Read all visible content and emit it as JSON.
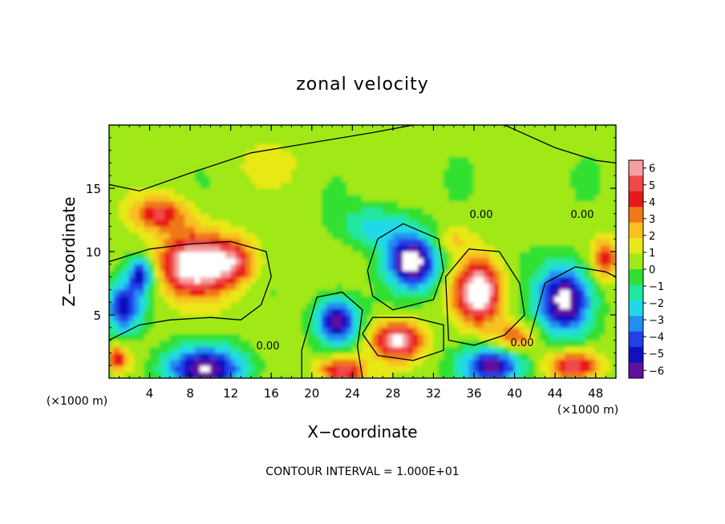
{
  "chart_data": {
    "type": "heatmap",
    "title": "zonal velocity",
    "xlabel": "X−coordinate",
    "ylabel": "Z−coordinate",
    "x_unit_left": "(×1000 m)",
    "x_unit_right": "(×1000 m)",
    "xlim": [
      0,
      50
    ],
    "ylim": [
      0,
      20
    ],
    "x_ticks": [
      4,
      8,
      12,
      16,
      20,
      24,
      28,
      32,
      36,
      40,
      44,
      48
    ],
    "x_tick_labels": [
      "4",
      "8",
      "12",
      "16",
      "20",
      "24",
      "28",
      "32",
      "36",
      "40",
      "44",
      "48"
    ],
    "y_ticks": [
      5,
      10,
      15
    ],
    "y_tick_labels": [
      "5",
      "10",
      "15"
    ],
    "colorbar": {
      "min": -6,
      "max": 6,
      "labels": [
        "6",
        "5",
        "4",
        "3",
        "2",
        "1",
        "0",
        "−1",
        "−2",
        "−3",
        "−4",
        "−5",
        "−6"
      ],
      "colors": [
        "#f5a0a0",
        "#f04848",
        "#e81818",
        "#f07818",
        "#f8c020",
        "#e8e818",
        "#a0e818",
        "#30e030",
        "#20e8a0",
        "#20d8e8",
        "#2090f0",
        "#2040e8",
        "#1010c0",
        "#6010a0"
      ]
    },
    "contour_labels": [
      "0.00",
      "0.00",
      "0.00",
      "0.00"
    ],
    "footer": "CONTOUR INTERVAL = 1.000E+01",
    "blobs": [
      {
        "x": 8.5,
        "z": 9.0,
        "sx": 3.5,
        "sz": 2.4,
        "v": 7
      },
      {
        "x": 5.0,
        "z": 13.0,
        "sx": 2.8,
        "sz": 1.3,
        "v": 4
      },
      {
        "x": 12.5,
        "z": 9.2,
        "sx": 2.2,
        "sz": 1.7,
        "v": 3.5
      },
      {
        "x": 30.0,
        "z": 9.2,
        "sx": 2.4,
        "sz": 2.0,
        "v": -7
      },
      {
        "x": 36.5,
        "z": 6.8,
        "sx": 2.2,
        "sz": 2.4,
        "v": 7
      },
      {
        "x": 45.0,
        "z": 6.2,
        "sx": 2.6,
        "sz": 2.6,
        "v": -7
      },
      {
        "x": 22.5,
        "z": 4.6,
        "sx": 2.0,
        "sz": 1.8,
        "v": -6
      },
      {
        "x": 28.5,
        "z": 3.0,
        "sx": 2.4,
        "sz": 1.4,
        "v": 6
      },
      {
        "x": 38.0,
        "z": 1.0,
        "sx": 3.0,
        "sz": 1.4,
        "v": -6
      },
      {
        "x": 9.5,
        "z": 0.8,
        "sx": 4.0,
        "sz": 1.7,
        "v": -6
      },
      {
        "x": 23.0,
        "z": 0.6,
        "sx": 2.3,
        "sz": 1.1,
        "v": 5
      },
      {
        "x": 46.0,
        "z": 1.0,
        "sx": 2.6,
        "sz": 1.2,
        "v": 5
      },
      {
        "x": 1.5,
        "z": 5.6,
        "sx": 1.8,
        "sz": 2.0,
        "v": -5
      },
      {
        "x": 3.2,
        "z": 8.2,
        "sx": 1.2,
        "sz": 1.3,
        "v": -5
      },
      {
        "x": 0.8,
        "z": 1.6,
        "sx": 1.2,
        "sz": 1.0,
        "v": 4
      },
      {
        "x": 26.5,
        "z": 12.0,
        "sx": 3.5,
        "sz": 1.6,
        "v": -2.5
      },
      {
        "x": 49.0,
        "z": 9.5,
        "sx": 1.2,
        "sz": 1.5,
        "v": 4
      },
      {
        "x": 34.0,
        "z": 11.0,
        "sx": 2.0,
        "sz": 1.0,
        "v": 1.5
      },
      {
        "x": 16.0,
        "z": 17.0,
        "sx": 5.0,
        "sz": 2.0,
        "v": 0.6
      },
      {
        "x": 40.0,
        "z": 3.2,
        "sx": 2.0,
        "sz": 1.2,
        "v": 3
      }
    ],
    "zero_contours": [
      [
        [
          0,
          3.0
        ],
        [
          3,
          4.2
        ],
        [
          6,
          4.6
        ],
        [
          10,
          4.8
        ],
        [
          13,
          4.6
        ],
        [
          15,
          5.8
        ],
        [
          16,
          8.0
        ],
        [
          15.5,
          10.0
        ],
        [
          12,
          10.8
        ],
        [
          8,
          10.6
        ],
        [
          4,
          10.2
        ],
        [
          0,
          9.2
        ]
      ],
      [
        [
          26,
          6.5
        ],
        [
          28,
          5.4
        ],
        [
          32,
          6.2
        ],
        [
          33,
          8.5
        ],
        [
          32.5,
          11.0
        ],
        [
          29,
          12.2
        ],
        [
          26.5,
          11.0
        ],
        [
          25.5,
          8.5
        ],
        [
          26,
          6.5
        ]
      ],
      [
        [
          33.5,
          3.0
        ],
        [
          36,
          2.6
        ],
        [
          39,
          3.4
        ],
        [
          41,
          5.0
        ],
        [
          40.5,
          7.5
        ],
        [
          38.5,
          10.0
        ],
        [
          35.5,
          10.2
        ],
        [
          33.2,
          8.0
        ],
        [
          33.5,
          3.0
        ]
      ],
      [
        [
          41.5,
          3.2
        ],
        [
          43,
          7.5
        ],
        [
          46,
          8.8
        ],
        [
          49,
          8.4
        ],
        [
          50,
          8.0
        ]
      ],
      [
        [
          25,
          3.5
        ],
        [
          26.5,
          1.8
        ],
        [
          30,
          1.4
        ],
        [
          33,
          2.2
        ],
        [
          33,
          4.2
        ],
        [
          30,
          4.8
        ],
        [
          26,
          4.8
        ],
        [
          25,
          3.5
        ]
      ],
      [
        [
          19,
          0
        ],
        [
          19,
          2.2
        ],
        [
          20.5,
          6.4
        ],
        [
          23,
          6.8
        ],
        [
          25,
          5.4
        ],
        [
          24.5,
          2.5
        ],
        [
          25,
          0
        ]
      ],
      [
        [
          0,
          15.3
        ],
        [
          3,
          14.8
        ],
        [
          8,
          16.2
        ],
        [
          14,
          17.8
        ],
        [
          20,
          18.6
        ],
        [
          26,
          19.4
        ],
        [
          30,
          20
        ]
      ],
      [
        [
          39,
          20
        ],
        [
          44,
          18.2
        ],
        [
          48,
          17.2
        ],
        [
          50,
          17.0
        ]
      ]
    ]
  }
}
